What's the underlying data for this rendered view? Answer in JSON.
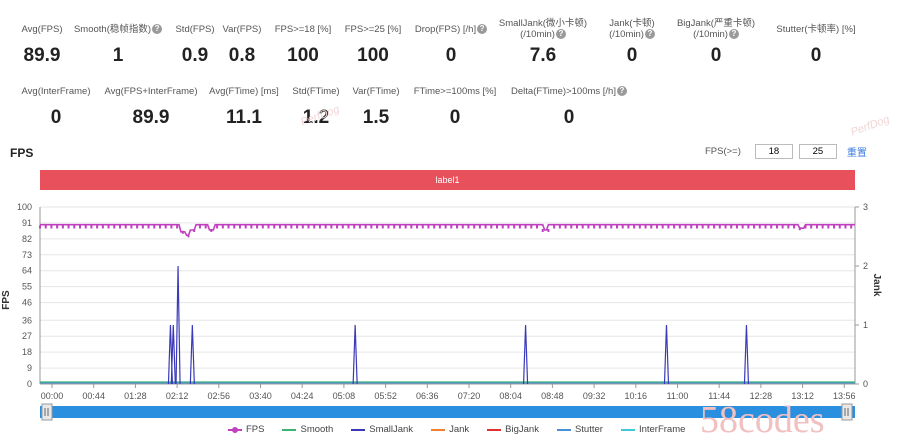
{
  "stats_row1": [
    {
      "label": "Avg(FPS)",
      "value": "89.9",
      "help": false
    },
    {
      "label": "Smooth(稳帧指数)",
      "value": "1",
      "help": true
    },
    {
      "label": "Std(FPS)",
      "value": "0.9",
      "help": false
    },
    {
      "label": "Var(FPS)",
      "value": "0.8",
      "help": false
    },
    {
      "label": "FPS>=18 [%]",
      "value": "100",
      "help": false
    },
    {
      "label": "FPS>=25 [%]",
      "value": "100",
      "help": false
    },
    {
      "label": "Drop(FPS) [/h]",
      "value": "0",
      "help": true
    },
    {
      "label": "SmallJank(微小卡顿)",
      "label2": "(/10min)",
      "value": "7.6",
      "help": true
    },
    {
      "label": "Jank(卡顿)",
      "label2": "(/10min)",
      "value": "0",
      "help": true
    },
    {
      "label": "BigJank(严重卡顿)",
      "label2": "(/10min)",
      "value": "0",
      "help": true
    },
    {
      "label": "Stutter(卡顿率) [%]",
      "value": "0",
      "help": false
    }
  ],
  "stats_row2": [
    {
      "label": "Avg(InterFrame)",
      "value": "0",
      "help": false
    },
    {
      "label": "Avg(FPS+InterFrame)",
      "value": "89.9",
      "help": false
    },
    {
      "label": "Avg(FTime) [ms]",
      "value": "11.1",
      "help": false
    },
    {
      "label": "Std(FTime)",
      "value": "1.2",
      "help": false
    },
    {
      "label": "Var(FTime)",
      "value": "1.5",
      "help": false
    },
    {
      "label": "FTime>=100ms [%]",
      "value": "0",
      "help": false
    },
    {
      "label": "Delta(FTime)>100ms [/h]",
      "value": "0",
      "help": true
    }
  ],
  "help_glyph": "?",
  "chart_title": "FPS",
  "fps_filter": {
    "label": "FPS(>=)",
    "value1": "18",
    "value2": "25",
    "reset": "重置"
  },
  "label_bar": "label1",
  "watermark": "PerfDog",
  "brand_watermark": "58codes",
  "colors": {
    "fps": "#c040c0",
    "smooth": "#3cb371",
    "smalljank": "#3a3ab8",
    "jank": "#f08030",
    "bigjank": "#e03030",
    "stutter": "#4a90d9",
    "interframe": "#40c8d8",
    "label_bar": "#e8505b",
    "slider": "#2b8fe0"
  },
  "chart_data": {
    "type": "line",
    "ylabel": "FPS",
    "y2label": "Jank",
    "yticks": [
      0,
      9,
      18,
      27,
      36,
      46,
      55,
      64,
      73,
      82,
      91,
      100
    ],
    "ylim": [
      0,
      100
    ],
    "y2ticks": [
      0,
      1,
      2,
      3
    ],
    "y2lim": [
      0,
      3
    ],
    "xticks": [
      "00:00",
      "00:44",
      "01:28",
      "02:12",
      "02:56",
      "03:40",
      "04:24",
      "05:08",
      "05:52",
      "06:36",
      "07:20",
      "08:04",
      "08:48",
      "09:32",
      "10:16",
      "11:00",
      "11:44",
      "12:28",
      "13:12",
      "13:56"
    ],
    "duration_seconds": 856,
    "fps_baseline": 90,
    "fps_dips": [
      {
        "t": 150,
        "v": 86
      },
      {
        "t": 155,
        "v": 84
      },
      {
        "t": 160,
        "v": 87
      },
      {
        "t": 180,
        "v": 87
      },
      {
        "t": 531,
        "v": 87
      },
      {
        "t": 800,
        "v": 88
      }
    ],
    "smalljank_spikes": [
      {
        "t": 137,
        "v": 1
      },
      {
        "t": 140,
        "v": 1
      },
      {
        "t": 145,
        "v": 2
      },
      {
        "t": 160,
        "v": 1
      },
      {
        "t": 331,
        "v": 1
      },
      {
        "t": 510,
        "v": 1
      },
      {
        "t": 658,
        "v": 1
      },
      {
        "t": 742,
        "v": 1
      }
    ],
    "legend": [
      "FPS",
      "Smooth",
      "SmallJank",
      "Jank",
      "BigJank",
      "Stutter",
      "InterFrame"
    ]
  }
}
